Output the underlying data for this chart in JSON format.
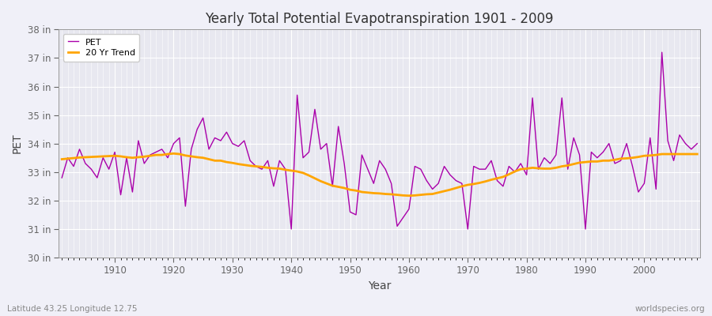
{
  "title": "Yearly Total Potential Evapotranspiration 1901 - 2009",
  "xlabel": "Year",
  "ylabel": "PET",
  "footnote_left": "Latitude 43.25 Longitude 12.75",
  "footnote_right": "worldspecies.org",
  "pet_color": "#aa00aa",
  "trend_color": "#FFA500",
  "figure_bg": "#f0f0f8",
  "axes_bg": "#e8e8f0",
  "grid_color": "#ffffff",
  "ylim": [
    30,
    38
  ],
  "ytick_labels": [
    "30 in",
    "31 in",
    "32 in",
    "33 in",
    "34 in",
    "35 in",
    "36 in",
    "37 in",
    "38 in"
  ],
  "ytick_values": [
    30,
    31,
    32,
    33,
    34,
    35,
    36,
    37,
    38
  ],
  "years": [
    1901,
    1902,
    1903,
    1904,
    1905,
    1906,
    1907,
    1908,
    1909,
    1910,
    1911,
    1912,
    1913,
    1914,
    1915,
    1916,
    1917,
    1918,
    1919,
    1920,
    1921,
    1922,
    1923,
    1924,
    1925,
    1926,
    1927,
    1928,
    1929,
    1930,
    1931,
    1932,
    1933,
    1934,
    1935,
    1936,
    1937,
    1938,
    1939,
    1940,
    1941,
    1942,
    1943,
    1944,
    1945,
    1946,
    1947,
    1948,
    1949,
    1950,
    1951,
    1952,
    1953,
    1954,
    1955,
    1956,
    1957,
    1958,
    1959,
    1960,
    1961,
    1962,
    1963,
    1964,
    1965,
    1966,
    1967,
    1968,
    1969,
    1970,
    1971,
    1972,
    1973,
    1974,
    1975,
    1976,
    1977,
    1978,
    1979,
    1980,
    1981,
    1982,
    1983,
    1984,
    1985,
    1986,
    1987,
    1988,
    1989,
    1990,
    1991,
    1992,
    1993,
    1994,
    1995,
    1996,
    1997,
    1998,
    1999,
    2000,
    2001,
    2002,
    2003,
    2004,
    2005,
    2006,
    2007,
    2008,
    2009
  ],
  "pet_values": [
    32.8,
    33.5,
    33.2,
    33.8,
    33.3,
    33.1,
    32.8,
    33.5,
    33.1,
    33.7,
    32.2,
    33.5,
    32.3,
    34.1,
    33.3,
    33.6,
    33.7,
    33.8,
    33.5,
    34.0,
    34.2,
    31.8,
    33.8,
    34.5,
    34.9,
    33.8,
    34.2,
    34.1,
    34.4,
    34.0,
    33.9,
    34.1,
    33.4,
    33.2,
    33.1,
    33.4,
    32.5,
    33.4,
    33.1,
    31.0,
    35.7,
    33.5,
    33.7,
    35.2,
    33.8,
    34.0,
    32.5,
    34.6,
    33.3,
    31.6,
    31.5,
    33.6,
    33.1,
    32.6,
    33.4,
    33.1,
    32.6,
    31.1,
    31.4,
    31.7,
    33.2,
    33.1,
    32.7,
    32.4,
    32.6,
    33.2,
    32.9,
    32.7,
    32.6,
    31.0,
    33.2,
    33.1,
    33.1,
    33.4,
    32.7,
    32.5,
    33.2,
    33.0,
    33.3,
    32.9,
    35.6,
    33.1,
    33.5,
    33.3,
    33.6,
    35.6,
    33.1,
    34.2,
    33.6,
    31.0,
    33.7,
    33.5,
    33.7,
    34.0,
    33.3,
    33.4,
    34.0,
    33.2,
    32.3,
    32.6,
    34.2,
    32.4,
    37.2,
    34.1,
    33.4,
    34.3,
    34.0,
    33.8,
    34.0
  ],
  "trend_values": [
    33.45,
    33.47,
    33.49,
    33.51,
    33.52,
    33.53,
    33.54,
    33.55,
    33.56,
    33.57,
    33.55,
    33.52,
    33.5,
    33.52,
    33.54,
    33.57,
    33.6,
    33.6,
    33.63,
    33.65,
    33.63,
    33.58,
    33.55,
    33.52,
    33.5,
    33.45,
    33.4,
    33.4,
    33.35,
    33.32,
    33.28,
    33.25,
    33.22,
    33.2,
    33.18,
    33.15,
    33.13,
    33.12,
    33.08,
    33.05,
    33.02,
    32.97,
    32.88,
    32.78,
    32.68,
    32.6,
    32.52,
    32.48,
    32.44,
    32.38,
    32.35,
    32.3,
    32.28,
    32.26,
    32.25,
    32.23,
    32.22,
    32.2,
    32.18,
    32.17,
    32.18,
    32.2,
    32.22,
    32.23,
    32.28,
    32.33,
    32.38,
    32.44,
    32.5,
    32.55,
    32.58,
    32.62,
    32.67,
    32.73,
    32.78,
    32.83,
    32.92,
    33.02,
    33.1,
    33.12,
    33.15,
    33.13,
    33.12,
    33.12,
    33.15,
    33.2,
    33.23,
    33.28,
    33.33,
    33.35,
    33.37,
    33.37,
    33.4,
    33.4,
    33.43,
    33.47,
    33.48,
    33.5,
    33.53,
    33.57,
    33.58,
    33.6,
    33.63,
    33.63,
    33.63,
    33.63,
    33.63,
    33.63,
    33.63
  ]
}
